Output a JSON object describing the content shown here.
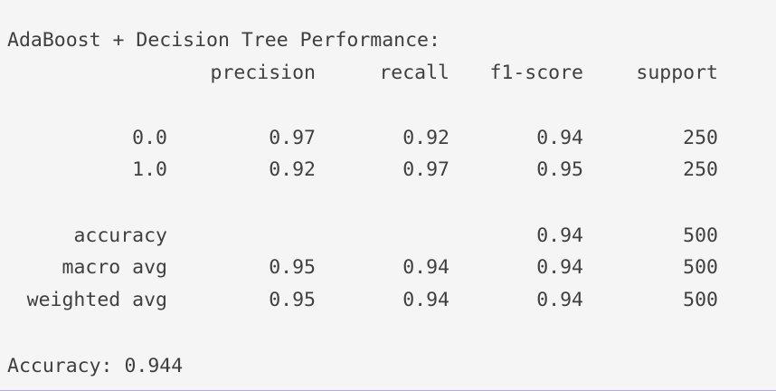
{
  "report": {
    "title": "AdaBoost + Decision Tree Performance:",
    "headers": [
      "precision",
      "recall",
      "f1-score",
      "support"
    ],
    "rows": [
      {
        "label": "0.0",
        "precision": "0.97",
        "recall": "0.92",
        "f1": "0.94",
        "support": "250"
      },
      {
        "label": "1.0",
        "precision": "0.92",
        "recall": "0.97",
        "f1": "0.95",
        "support": "250"
      },
      {
        "label": "accuracy",
        "precision": "",
        "recall": "",
        "f1": "0.94",
        "support": "500"
      },
      {
        "label": "macro avg",
        "precision": "0.95",
        "recall": "0.94",
        "f1": "0.94",
        "support": "500"
      },
      {
        "label": "weighted avg",
        "precision": "0.95",
        "recall": "0.94",
        "f1": "0.94",
        "support": "500"
      }
    ],
    "accuracy_line": "Accuracy: 0.944"
  }
}
